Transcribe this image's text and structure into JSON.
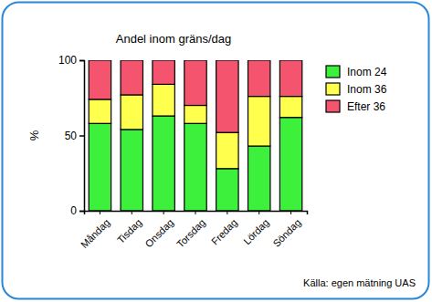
{
  "chart_data": {
    "type": "bar",
    "stacked": true,
    "title": "Andel inom gräns/dag",
    "y_label": "%",
    "annotation": "Källa: egen mätning UAS",
    "categories": [
      "Måndag",
      "Tisdag",
      "Onsdag",
      "Torsdag",
      "Fredag",
      "Lördag",
      "Söndag"
    ],
    "series": [
      {
        "name": "Inom 24",
        "color": "#3cf03c",
        "values": [
          58,
          54,
          63,
          58,
          28,
          43,
          62
        ]
      },
      {
        "name": "Inom 36",
        "color": "#ffff4d",
        "values": [
          16,
          23,
          21,
          12,
          24,
          33,
          14
        ]
      },
      {
        "name": "Efter 36",
        "color": "#f5546e",
        "values": [
          26,
          23,
          16,
          30,
          48,
          24,
          24
        ]
      }
    ],
    "ylim": [
      0,
      100
    ],
    "yticks": [
      0,
      50,
      100
    ],
    "legend": "right"
  }
}
